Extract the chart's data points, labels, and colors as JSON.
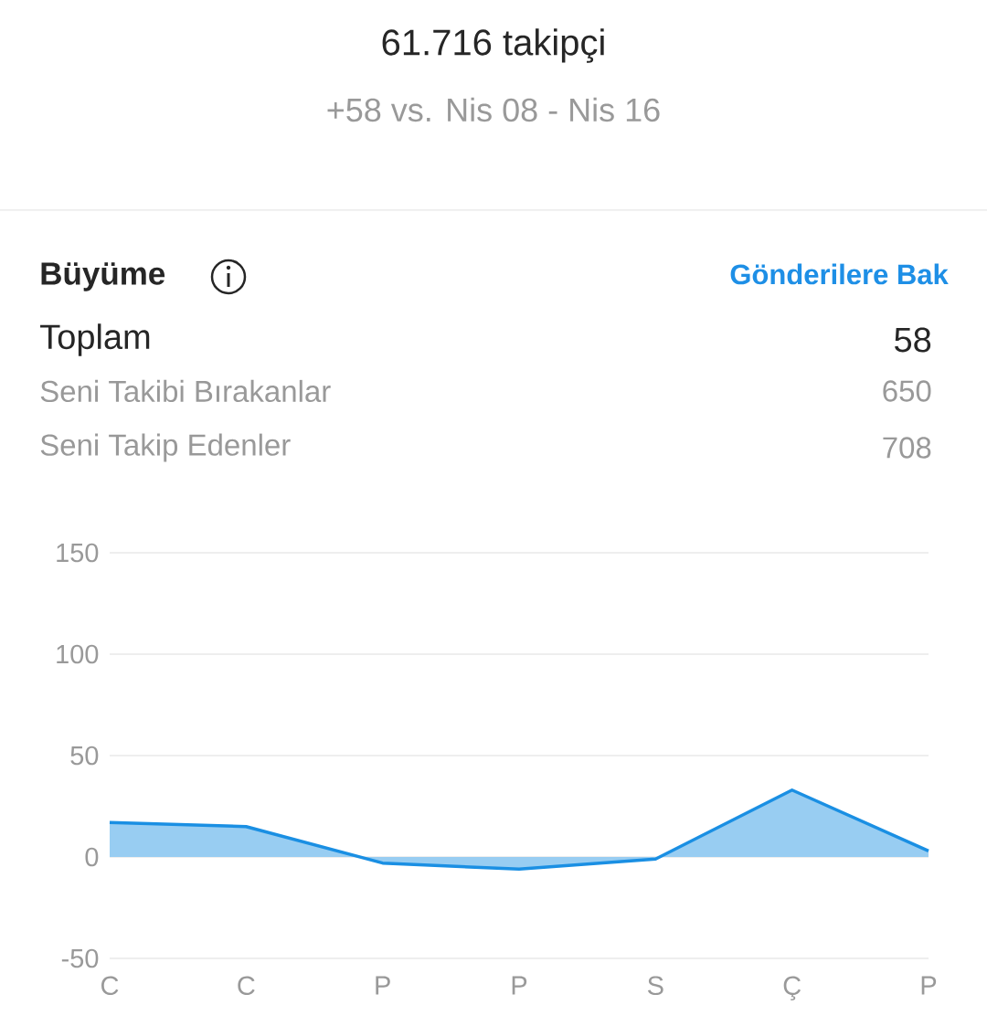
{
  "chart_data": {
    "type": "area",
    "title": "61.716 takipçi",
    "subtitle": "+58 vs. Nis 08 - Nis 16",
    "categories": [
      "C",
      "C",
      "P",
      "P",
      "S",
      "Ç",
      "P"
    ],
    "series": [
      {
        "color": "#1a8fe3",
        "values": [
          17,
          15,
          -3,
          -6,
          -1,
          33,
          3
        ]
      }
    ],
    "ylim": [
      -50,
      150
    ],
    "yticks": [
      -50,
      0,
      50,
      100,
      150
    ],
    "grid": "y",
    "annotations": [
      "Büyüme",
      "Gönderilere Bak",
      "Toplam",
      "58",
      "Seni Takibi Bırakanlar",
      "650",
      "Seni Takip Edenler",
      "708"
    ]
  }
}
